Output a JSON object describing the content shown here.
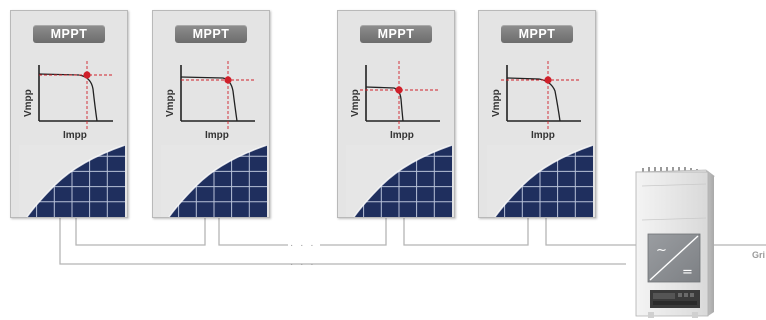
{
  "panels": [
    {
      "badge": "MPPT",
      "y_label": "Vmpp",
      "x_label": "Impp"
    },
    {
      "badge": "MPPT",
      "y_label": "Vmpp",
      "x_label": "Impp"
    },
    {
      "badge": "MPPT",
      "y_label": "Vmpp",
      "x_label": "Impp"
    },
    {
      "badge": "MPPT",
      "y_label": "Vmpp",
      "x_label": "Impp"
    }
  ],
  "wiring": {
    "continuation_upper": "· · ·",
    "continuation_lower": "· · ·",
    "grid_label": "Gri"
  },
  "inverter": {
    "display_symbols": [
      "~",
      "="
    ]
  },
  "colors": {
    "panel_bg": "#e4e4e4",
    "badge_bg": "#7a7a7a",
    "mpp_point": "#d0202a",
    "guide_line": "#d0202a",
    "solar_cell": "#1f2f5e",
    "cell_grid": "#b8c2d8",
    "wire": "#b5b5b5",
    "inverter_screen": "#8b8e92"
  }
}
